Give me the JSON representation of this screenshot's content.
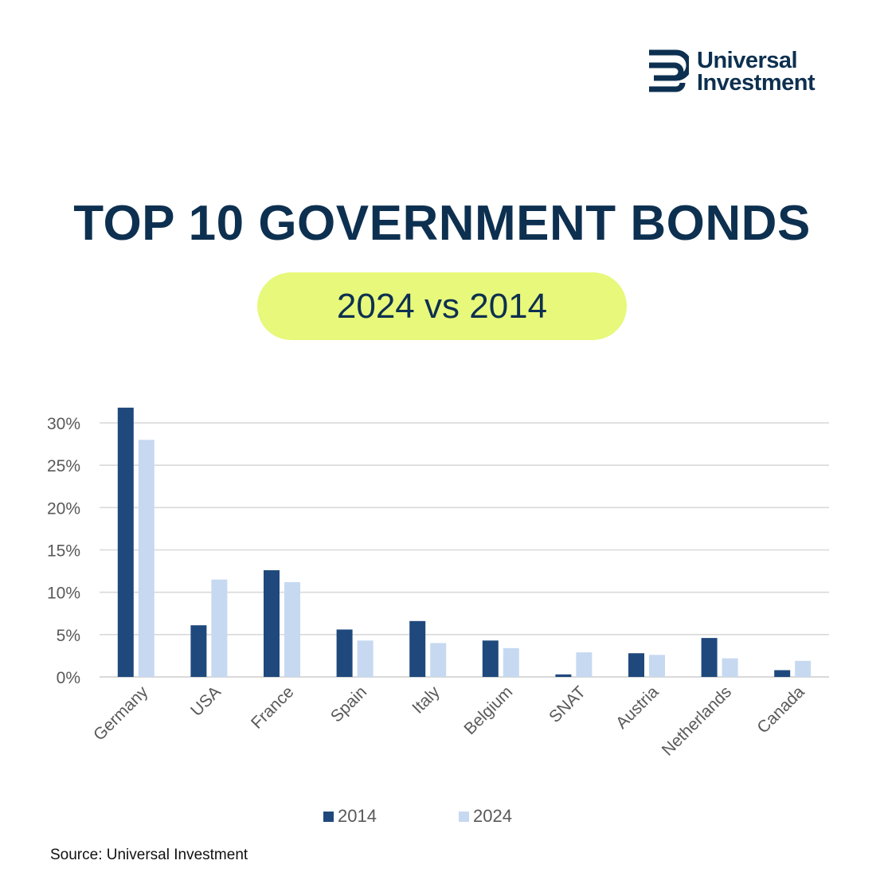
{
  "brand": {
    "line1": "Universal",
    "line2": "Investment",
    "color": "#0d3050"
  },
  "header": {
    "title": "TOP 10 GOVERNMENT BONDS",
    "subtitle": "2024 vs 2014",
    "pill_color": "#e8f87b"
  },
  "chart_data": {
    "type": "bar",
    "title": "",
    "xlabel": "",
    "ylabel": "",
    "categories": [
      "Germany",
      "USA",
      "France",
      "Spain",
      "Italy",
      "Belgium",
      "SNAT",
      "Austria",
      "Netherlands",
      "Canada"
    ],
    "series": [
      {
        "name": "2014",
        "color": "#1f497d",
        "values": [
          31.8,
          6.1,
          12.6,
          5.6,
          6.6,
          4.3,
          0.3,
          2.8,
          4.6,
          0.8
        ]
      },
      {
        "name": "2024",
        "color": "#c6d9f1",
        "values": [
          28.0,
          11.5,
          11.2,
          4.3,
          4.0,
          3.4,
          2.9,
          2.6,
          2.2,
          1.9
        ]
      }
    ],
    "yticks": [
      "0%",
      "5%",
      "10%",
      "15%",
      "20%",
      "25%",
      "30%"
    ],
    "ytick_values": [
      0,
      5,
      10,
      15,
      20,
      25,
      30
    ],
    "ylim": [
      0,
      30
    ],
    "grid": true,
    "legend_position": "bottom"
  },
  "footer": {
    "source": "Source: Universal Investment"
  }
}
